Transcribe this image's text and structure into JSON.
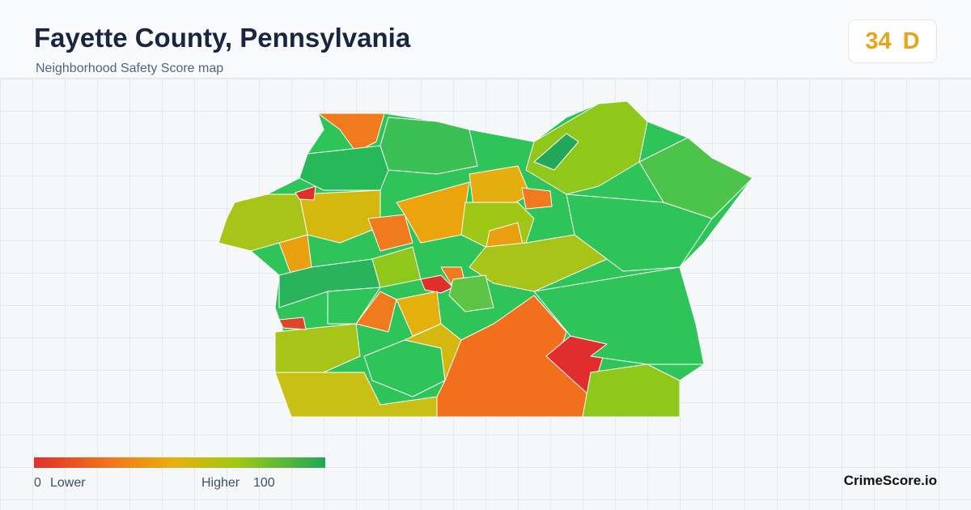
{
  "header": {
    "title": "Fayette County, Pennsylvania",
    "subtitle": "Neighborhood Safety Score map"
  },
  "score": {
    "value": "34",
    "grade": "D"
  },
  "legend": {
    "min": "0",
    "min_label": "Lower",
    "max_label": "Higher",
    "max": "100"
  },
  "brand": "CrimeScore.io"
}
